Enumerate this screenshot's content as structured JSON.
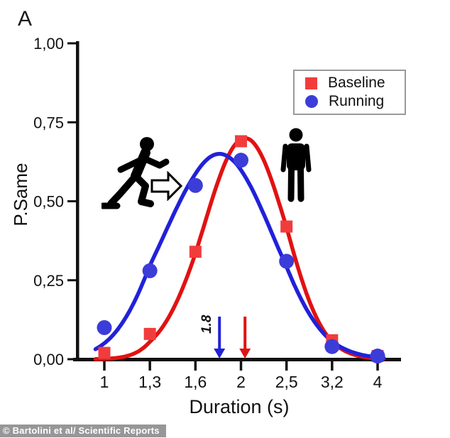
{
  "panel_label": "A",
  "attribution": "© Bartolini et al/ Scientific Reports",
  "legend": {
    "position": "top-right",
    "items": [
      {
        "label": "Baseline",
        "marker": "square",
        "color": "#f23c3c"
      },
      {
        "label": "Running",
        "marker": "circle",
        "color": "#3c3cd9"
      }
    ]
  },
  "figure_icons": [
    {
      "name": "running-person-icon",
      "meaning": "running condition pictogram"
    },
    {
      "name": "right-arrow-icon",
      "meaning": "transition arrow"
    },
    {
      "name": "standing-person-icon",
      "meaning": "baseline standing pictogram"
    }
  ],
  "chart_data": {
    "type": "scatter",
    "xlabel": "Duration (s)",
    "ylabel": "P.Same",
    "x_scale": "log-categorical",
    "grid": false,
    "x_categories": [
      1,
      1.3,
      1.6,
      2,
      2.5,
      3.2,
      4
    ],
    "x_tick_labels": [
      "1",
      "1,3",
      "1,6",
      "2",
      "2,5",
      "3,2",
      "4"
    ],
    "y_tick_values": [
      0,
      0.25,
      0.5,
      0.75,
      1
    ],
    "y_tick_labels": [
      "0,00",
      "0,25",
      "0,50",
      "0,75",
      "1,00"
    ],
    "ylim": [
      0,
      1
    ],
    "series": [
      {
        "name": "Baseline",
        "marker": "square",
        "marker_color": "#f23c3c",
        "curve_color": "#e11212",
        "x": [
          1,
          1.3,
          1.6,
          2,
          2.5,
          3.2,
          4
        ],
        "values": [
          0.02,
          0.08,
          0.34,
          0.69,
          0.42,
          0.06,
          0.01
        ],
        "fit": {
          "type": "gaussian-log",
          "center": 2.04,
          "sigma": 0.2,
          "amplitude": 0.7
        },
        "pse_arrow": {
          "x": 2.04,
          "label": ""
        }
      },
      {
        "name": "Running",
        "marker": "circle",
        "marker_color": "#3c3cd9",
        "curve_color": "#2121d9",
        "x": [
          1,
          1.3,
          1.6,
          2,
          2.5,
          3.2,
          4
        ],
        "values": [
          0.1,
          0.28,
          0.55,
          0.63,
          0.31,
          0.04,
          0.01
        ],
        "fit": {
          "type": "gaussian-log",
          "center": 1.8,
          "sigma": 0.26,
          "amplitude": 0.65
        },
        "pse_arrow": {
          "x": 1.8,
          "label": "1.8"
        }
      }
    ]
  }
}
